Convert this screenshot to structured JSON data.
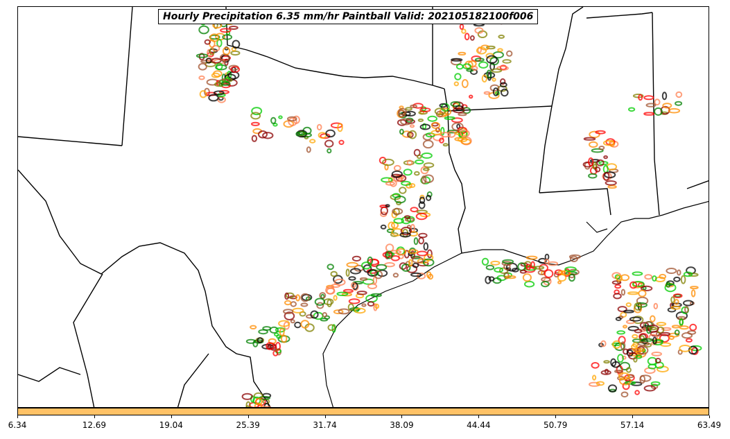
{
  "title": "Hourly Precipitation 6.35 mm/hr Paintball Valid: 202105182100f006",
  "colorbar": {
    "color": "#ffc266",
    "ticks": [
      "6.34",
      "12.69",
      "19.04",
      "25.39",
      "31.74",
      "38.09",
      "44.44",
      "50.79",
      "57.14",
      "63.49"
    ]
  },
  "member_colors": [
    "#00cc00",
    "#008000",
    "#808000",
    "#ff0000",
    "#8b0000",
    "#ff8c00",
    "#ffa500",
    "#ff7f50",
    "#a0522d",
    "#000000"
  ]
}
